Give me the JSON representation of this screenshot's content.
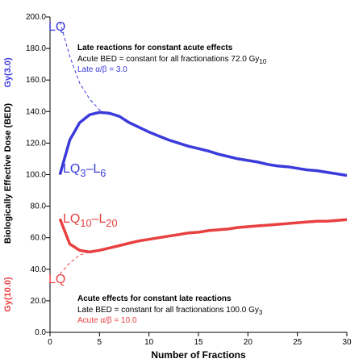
{
  "chart_data": {
    "type": "line",
    "xlabel": "Number of Fractions",
    "ylabel": "Biologically Effective Dose (BED)",
    "ylabel_top": {
      "text": "Gy(3.0)",
      "color": "#3b3bdc"
    },
    "ylabel_bottom": {
      "text": "Gy(10.0)",
      "color": "#e84040"
    },
    "xlim": [
      0,
      30
    ],
    "xticks": [
      0,
      5,
      10,
      15,
      20,
      25,
      30
    ],
    "ylim": [
      0,
      200
    ],
    "yticks": [
      {
        "value": 0,
        "label": "0.0"
      },
      {
        "value": 20,
        "label": "20.0"
      },
      {
        "value": 40,
        "label": "40.0"
      },
      {
        "value": 60,
        "label": "60.0"
      },
      {
        "value": 80,
        "label": "80.0"
      },
      {
        "value": 100,
        "label": "100.0"
      },
      {
        "value": 120,
        "label": "120.0"
      },
      {
        "value": 140,
        "label": "140.0"
      },
      {
        "value": 160,
        "label": "160.0"
      },
      {
        "value": 180,
        "label": "180.0"
      },
      {
        "value": 200,
        "label": "200.0"
      }
    ],
    "series": [
      {
        "color": "#3b3bdc",
        "dashed": false,
        "x": [
          1,
          2,
          3,
          4,
          5,
          6,
          7,
          8,
          9,
          10,
          11,
          12,
          13,
          14,
          15,
          16,
          17,
          18,
          19,
          20,
          21,
          22,
          23,
          24,
          25,
          26,
          27,
          28,
          29,
          30
        ],
        "values": [
          100,
          122,
          133,
          138,
          139.5,
          139,
          137,
          133,
          130,
          127,
          124.5,
          122,
          120,
          118,
          116.5,
          115,
          113,
          111.5,
          110,
          109,
          108,
          106.5,
          105.5,
          105,
          104,
          103,
          102.5,
          101.5,
          100.5,
          99.5
        ]
      },
      {
        "color": "#e84040",
        "dashed": false,
        "x": [
          1,
          2,
          3,
          4,
          5,
          6,
          7,
          8,
          9,
          10,
          11,
          12,
          13,
          14,
          15,
          16,
          17,
          18,
          19,
          20,
          21,
          22,
          23,
          24,
          25,
          26,
          27,
          28,
          29,
          30
        ],
        "values": [
          72,
          56,
          52,
          51,
          52,
          53.5,
          55,
          56.5,
          58,
          59,
          60,
          61,
          62,
          63,
          63.5,
          64.5,
          65,
          65.5,
          66.5,
          67,
          67.5,
          68,
          68.5,
          69,
          69.5,
          70,
          70.5,
          70.5,
          71,
          71.5
        ]
      },
      {
        "color": "#3b3bdc",
        "dashed": true,
        "x": [
          1,
          2,
          3,
          4,
          5,
          6
        ],
        "values": [
          197,
          175,
          158,
          148,
          141,
          138
        ]
      },
      {
        "color": "#e84040",
        "dashed": true,
        "x": [
          1,
          2,
          3,
          4
        ],
        "values": [
          37,
          44,
          49,
          51
        ]
      }
    ],
    "annotations": [
      {
        "parts": [
          "LQ"
        ],
        "color": "#3b3bdc"
      },
      {
        "parts": [
          "LQ",
          "3",
          "–L",
          "6"
        ],
        "color": "#3b3bdc"
      },
      {
        "parts": [
          "LQ",
          "10",
          "–L",
          "20"
        ],
        "color": "#e84040"
      },
      {
        "parts": [
          "LQ"
        ],
        "color": "#e84040"
      },
      {
        "parts": [
          "Late reactions for constant acute effects"
        ],
        "color": "#000000"
      },
      {
        "parts": [
          "Acute BED = constant for all fractionations 72.0 Gy",
          "10"
        ],
        "color": "#000000"
      },
      {
        "parts": [
          "Late α/β = 3.0"
        ],
        "color": "#3b3bdc"
      },
      {
        "parts": [
          "Acute effects for constant late reactions"
        ],
        "color": "#000000"
      },
      {
        "parts": [
          "Late BED = constant for all fractionations 100.0 Gy",
          "3"
        ],
        "color": "#000000"
      },
      {
        "parts": [
          "Acute α/β = 10.0"
        ],
        "color": "#e84040"
      }
    ]
  }
}
